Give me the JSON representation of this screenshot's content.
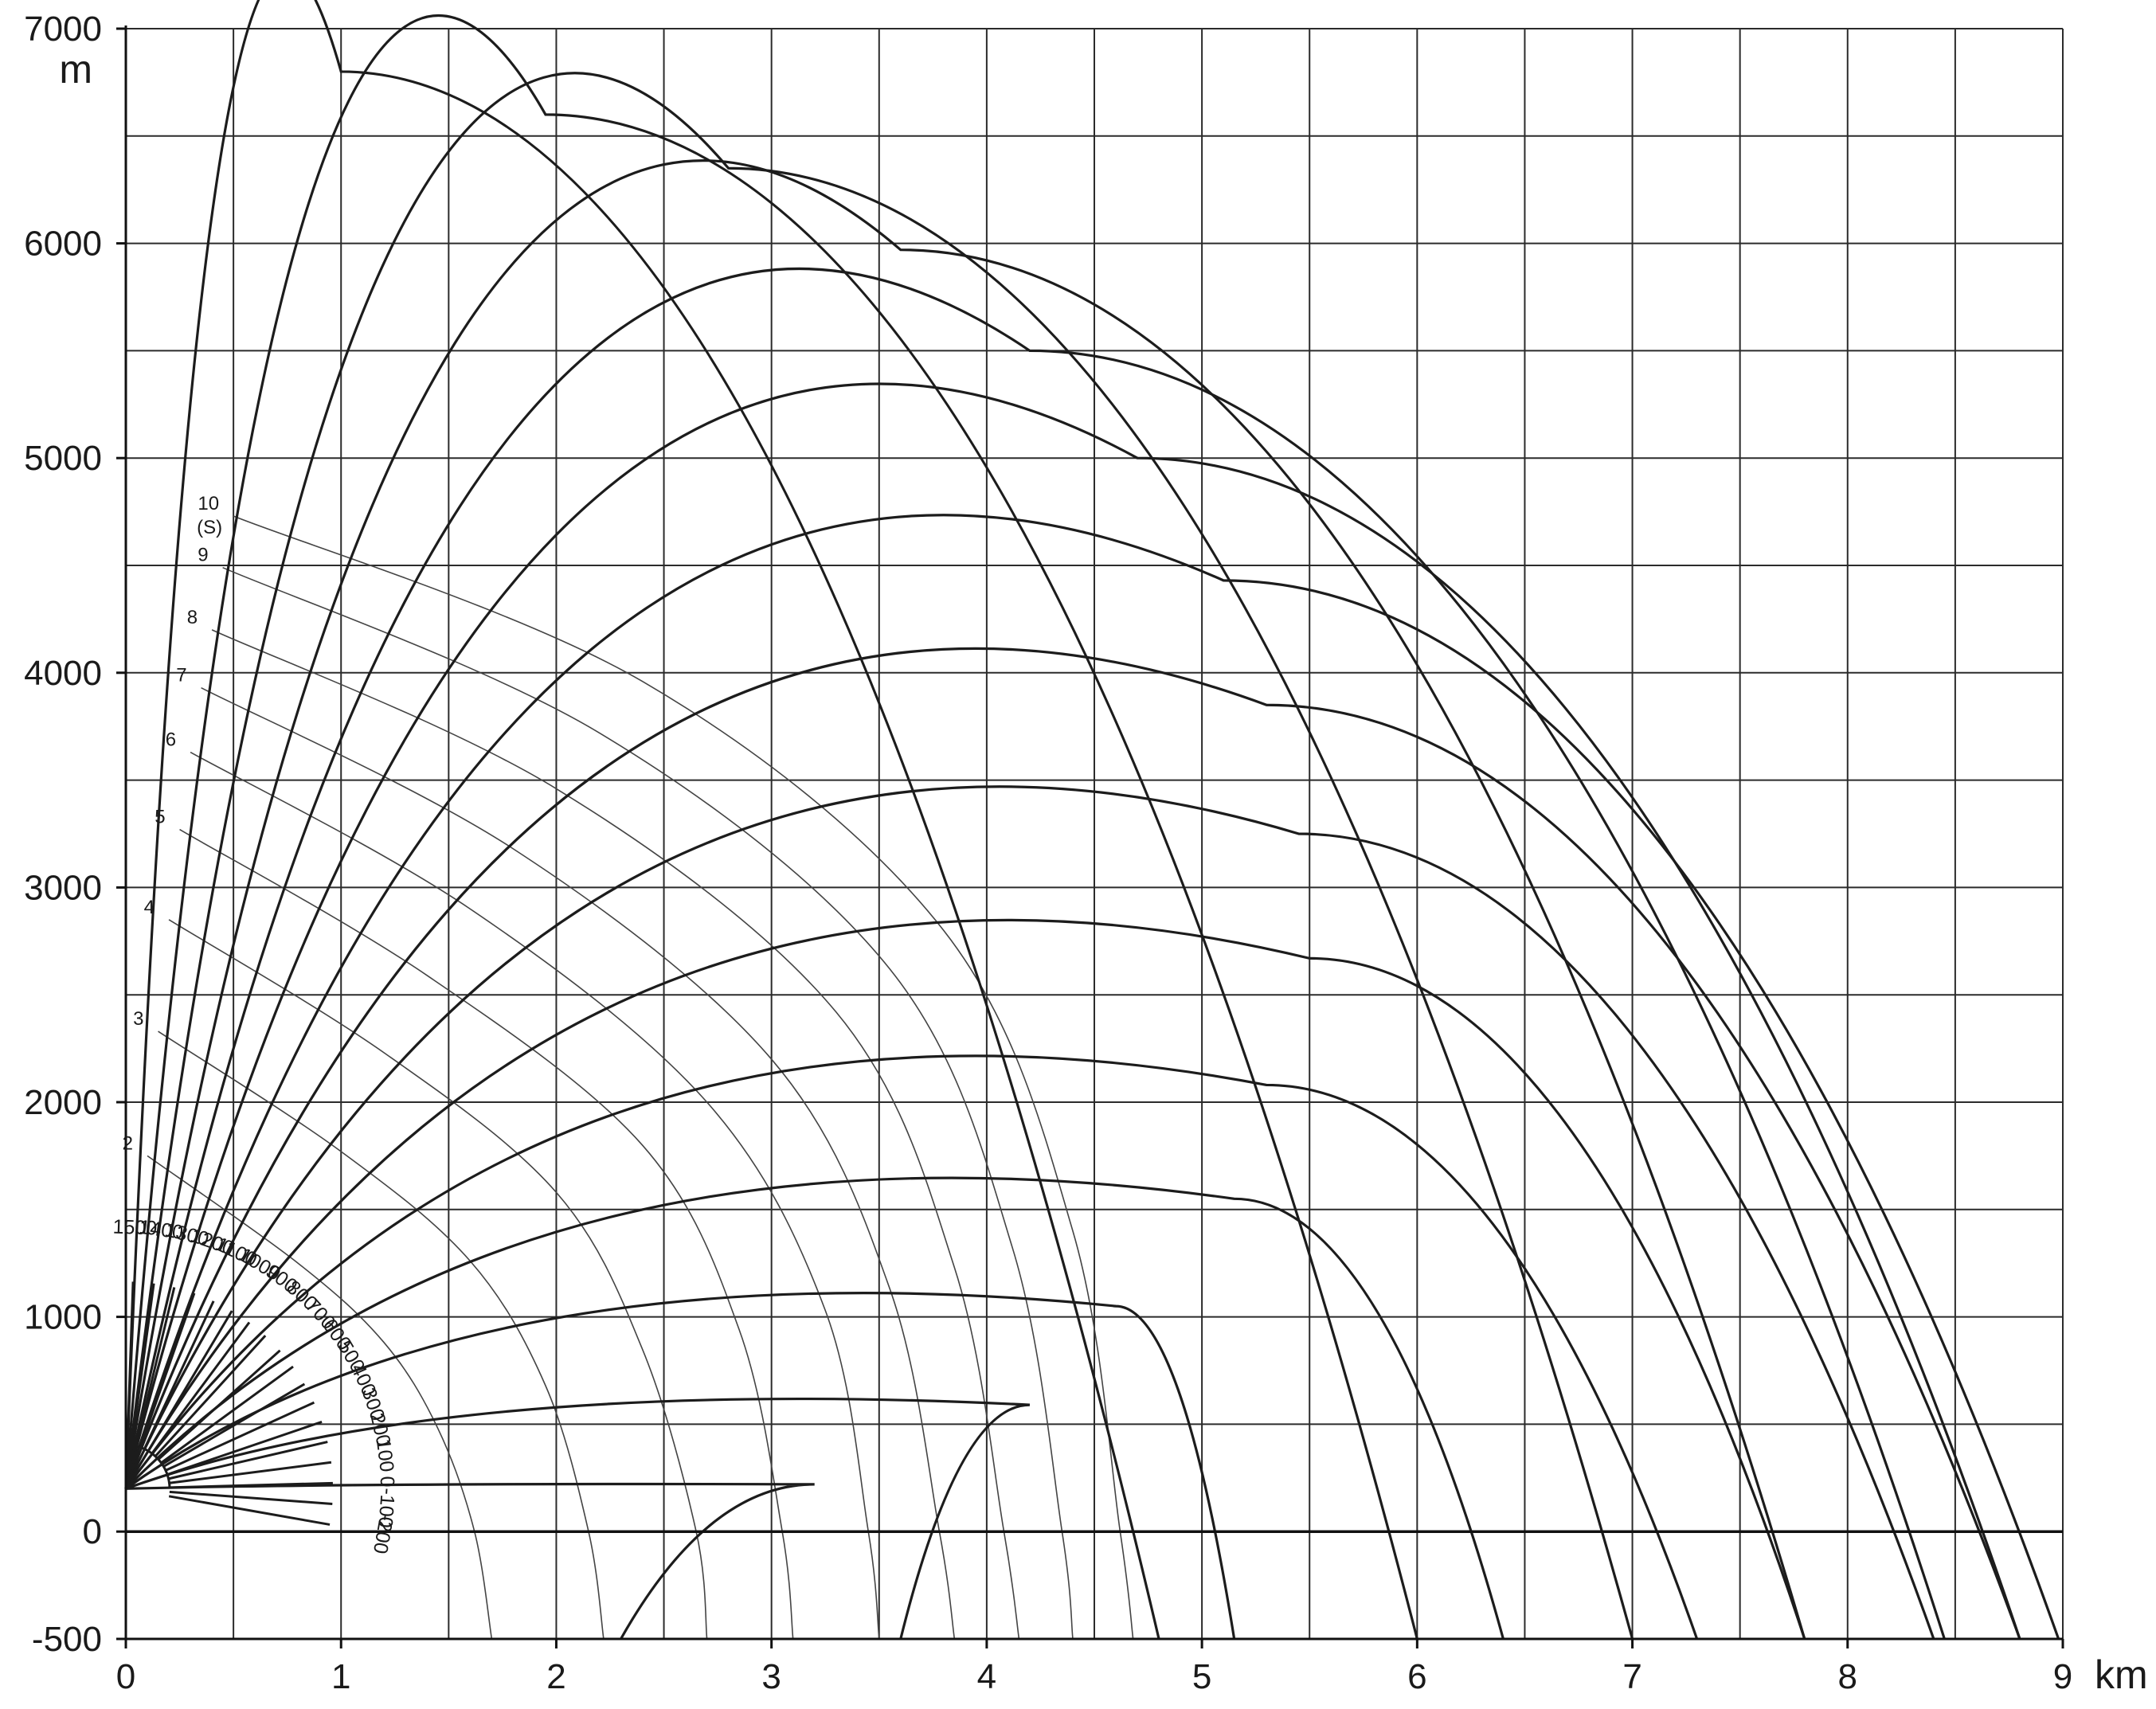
{
  "chart_data": {
    "type": "line",
    "title": "",
    "xlabel": "km",
    "ylabel": "m",
    "xlim": [
      0,
      9
    ],
    "ylim": [
      -500,
      7000
    ],
    "grid": true,
    "x_ticks": [
      "0",
      "1",
      "2",
      "3",
      "4",
      "5",
      "6",
      "7",
      "8",
      "9"
    ],
    "y_ticks": [
      {
        "value": 7000,
        "label": "7000"
      },
      {
        "value": 6000,
        "label": "6000"
      },
      {
        "value": 5000,
        "label": "5000"
      },
      {
        "value": 4000,
        "label": "4000"
      },
      {
        "value": 3000,
        "label": "3000"
      },
      {
        "value": 2000,
        "label": "2000"
      },
      {
        "value": 1000,
        "label": "1000"
      },
      {
        "value": 0,
        "label": "0"
      },
      {
        "value": -500,
        "label": "-500"
      }
    ],
    "y_grid": [
      7000,
      6500,
      6000,
      5500,
      5000,
      4500,
      4000,
      3500,
      3000,
      2500,
      2000,
      1500,
      1000,
      500,
      0
    ],
    "x_grid": [
      0,
      0.5,
      1,
      1.5,
      2,
      2.5,
      3,
      3.5,
      4,
      4.5,
      5,
      5.5,
      6,
      6.5,
      7,
      7.5,
      8,
      8.5,
      9
    ],
    "muzzle": [
      0,
      200
    ],
    "trajectory_apexes": [
      [
        1.0,
        6800
      ],
      [
        1.95,
        6600
      ],
      [
        2.8,
        6350
      ],
      [
        3.6,
        5970
      ],
      [
        4.2,
        5500
      ],
      [
        4.7,
        5000
      ],
      [
        5.1,
        4430
      ],
      [
        5.3,
        3850
      ],
      [
        5.45,
        3250
      ],
      [
        5.5,
        2670
      ],
      [
        5.3,
        2080
      ],
      [
        5.15,
        1550
      ],
      [
        4.6,
        1050
      ],
      [
        4.2,
        590
      ],
      [
        3.2,
        220
      ]
    ],
    "elevation_lines": [
      {
        "label": "1500",
        "x_ground": 1.72,
        "y_ground": -500
      },
      {
        "label": "1400",
        "x_ground": 3.35,
        "y_ground": -500
      },
      {
        "label": "1300",
        "x_ground": 4.8,
        "y_ground": -500
      },
      {
        "label": "1200",
        "x_ground": 6.0,
        "y_ground": -500
      },
      {
        "label": "1100",
        "x_ground": 7.0,
        "y_ground": -500
      },
      {
        "label": "1000",
        "x_ground": 7.8,
        "y_ground": -500
      },
      {
        "label": "900",
        "x_ground": 8.45,
        "y_ground": -500
      },
      {
        "label": "800",
        "x_ground": 8.8,
        "y_ground": -500
      },
      {
        "label": "700",
        "x_ground": 8.98,
        "y_ground": -500
      },
      {
        "label": "600",
        "x_ground": 8.8,
        "y_ground": -500
      },
      {
        "label": "500",
        "x_ground": 8.4,
        "y_ground": -500
      },
      {
        "label": "400",
        "x_ground": 7.8,
        "y_ground": -500
      },
      {
        "label": "300",
        "x_ground": 7.3,
        "y_ground": -500
      },
      {
        "label": "200",
        "x_ground": 6.4,
        "y_ground": -500
      },
      {
        "label": "100",
        "x_ground": 5.15,
        "y_ground": -500
      },
      {
        "label": "0",
        "x_ground": 3.6,
        "y_ground": -500
      },
      {
        "label": "-100",
        "x_ground": 2.3,
        "y_ground": -500
      },
      {
        "label": "-200",
        "x_ground": 1.72,
        "y_ground": -500
      }
    ],
    "time_contours": [
      {
        "label": "2",
        "points": [
          [
            0.1,
            1750
          ],
          [
            0.8,
            1250
          ],
          [
            1.2,
            880
          ],
          [
            1.45,
            480
          ],
          [
            1.62,
            0
          ],
          [
            1.7,
            -500
          ]
        ]
      },
      {
        "label": "3",
        "points": [
          [
            0.15,
            2330
          ],
          [
            1.0,
            1770
          ],
          [
            1.6,
            1260
          ],
          [
            1.95,
            680
          ],
          [
            2.15,
            0
          ],
          [
            2.22,
            -500
          ]
        ]
      },
      {
        "label": "4",
        "points": [
          [
            0.2,
            2850
          ],
          [
            1.2,
            2230
          ],
          [
            2.0,
            1580
          ],
          [
            2.4,
            850
          ],
          [
            2.65,
            0
          ],
          [
            2.7,
            -500
          ]
        ]
      },
      {
        "label": "5",
        "points": [
          [
            0.25,
            3270
          ],
          [
            1.4,
            2590
          ],
          [
            2.4,
            1800
          ],
          [
            2.85,
            940
          ],
          [
            3.05,
            0
          ],
          [
            3.1,
            -500
          ]
        ]
      },
      {
        "label": "6",
        "points": [
          [
            0.3,
            3630
          ],
          [
            1.6,
            2900
          ],
          [
            2.7,
            2000
          ],
          [
            3.25,
            1030
          ],
          [
            3.45,
            0
          ],
          [
            3.5,
            -500
          ]
        ]
      },
      {
        "label": "7",
        "points": [
          [
            0.35,
            3930
          ],
          [
            1.8,
            3180
          ],
          [
            3.0,
            2200
          ],
          [
            3.55,
            1130
          ],
          [
            3.78,
            0
          ],
          [
            3.85,
            -500
          ]
        ]
      },
      {
        "label": "8",
        "points": [
          [
            0.4,
            4200
          ],
          [
            2.0,
            3460
          ],
          [
            3.3,
            2420
          ],
          [
            3.85,
            1230
          ],
          [
            4.08,
            0
          ],
          [
            4.15,
            -500
          ]
        ]
      },
      {
        "label": "9",
        "points": [
          [
            0.45,
            4490
          ],
          [
            2.2,
            3720
          ],
          [
            3.55,
            2620
          ],
          [
            4.12,
            1320
          ],
          [
            4.35,
            0
          ],
          [
            4.4,
            -500
          ]
        ]
      },
      {
        "label": "10",
        "sublabel": "(S)",
        "points": [
          [
            0.5,
            4730
          ],
          [
            2.4,
            3960
          ],
          [
            3.8,
            2800
          ],
          [
            4.4,
            1400
          ],
          [
            4.62,
            0
          ],
          [
            4.68,
            -500
          ]
        ]
      }
    ]
  }
}
